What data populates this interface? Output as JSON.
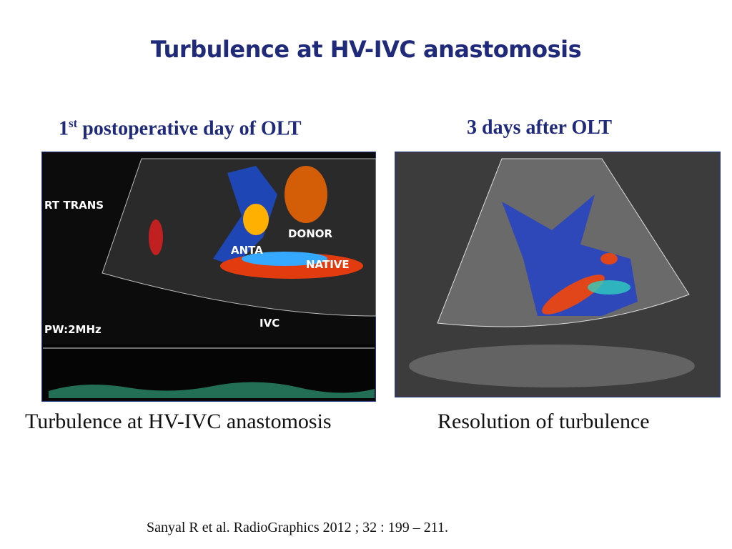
{
  "header": {
    "title": "Turbulence at HV-IVC anastomosis"
  },
  "panels": [
    {
      "heading": {
        "number": "1",
        "superscript": "st",
        "rest": "postoperative day of OLT"
      },
      "image_labels": [
        "RT TRANS",
        "ANTA",
        "DONOR",
        "NATIVE",
        "IVC",
        "PW:2MHz"
      ],
      "caption": "Turbulence at HV-IVC anastomosis"
    },
    {
      "heading": {
        "text": "3 days after OLT"
      },
      "caption": "Resolution of turbulence"
    }
  ],
  "citation": "Sanyal R et al. RadioGraphics 2012 ; 32 : 199 – 211."
}
